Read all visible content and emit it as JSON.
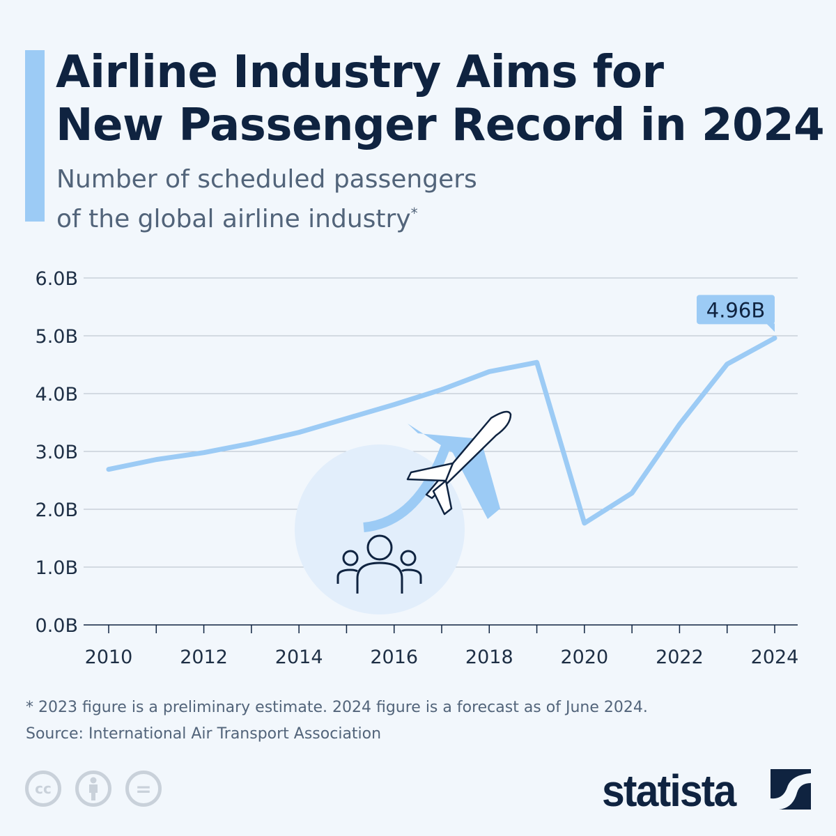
{
  "header": {
    "title_line1": "Airline Industry Aims for",
    "title_line2": "New Passenger Record in 2024",
    "subtitle_line1": "Number of scheduled passengers",
    "subtitle_line2": "of the global airline industry",
    "subtitle_marker": "*"
  },
  "chart_data": {
    "type": "line",
    "title": "Airline Industry Aims for New Passenger Record in 2024",
    "subtitle": "Number of scheduled passengers of the global airline industry*",
    "x": [
      2010,
      2011,
      2012,
      2013,
      2014,
      2015,
      2016,
      2017,
      2018,
      2019,
      2020,
      2021,
      2022,
      2023,
      2024
    ],
    "series": [
      {
        "values": [
          2.69,
          2.86,
          2.98,
          3.14,
          3.33,
          3.57,
          3.81,
          4.07,
          4.38,
          4.54,
          1.76,
          2.28,
          3.47,
          4.51,
          4.96
        ]
      }
    ],
    "unit": "billions",
    "ylim": [
      0,
      6
    ],
    "yticks": [
      "0.0B",
      "1.0B",
      "2.0B",
      "3.0B",
      "4.0B",
      "5.0B",
      "6.0B"
    ],
    "xticks": [
      "2010",
      "2012",
      "2014",
      "2016",
      "2018",
      "2020",
      "2022",
      "2024"
    ],
    "annotation": {
      "year": 2024,
      "label": "4.96B"
    },
    "grid": true,
    "line_color": "#9ccbf5"
  },
  "footer": {
    "note": "* 2023 figure is a preliminary estimate. 2024 figure is a forecast as of June 2024.",
    "source": "Source: International Air Transport Association",
    "brand": "statista",
    "license_icons": [
      "cc-icon",
      "attribution-icon",
      "no-derivatives-icon"
    ],
    "cc_label": "cc",
    "nd_label": "="
  },
  "colors": {
    "title": "#0f2340",
    "accent": "#9ccbf5",
    "background": "#f2f7fc"
  }
}
